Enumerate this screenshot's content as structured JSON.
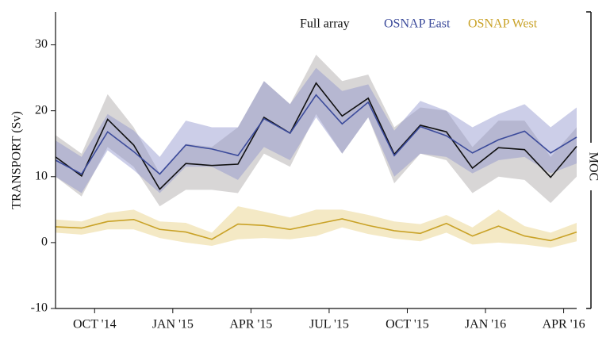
{
  "chart_data": {
    "type": "line",
    "ylabel": "TRANSPORT (Sv)",
    "right_label": "MOC",
    "x": [
      "2014-08",
      "2014-09",
      "2014-10",
      "2014-11",
      "2014-12",
      "2015-01",
      "2015-02",
      "2015-03",
      "2015-04",
      "2015-05",
      "2015-06",
      "2015-07",
      "2015-08",
      "2015-09",
      "2015-10",
      "2015-11",
      "2015-12",
      "2016-01",
      "2016-02",
      "2016-03",
      "2016-04"
    ],
    "xlim": [
      "2014-08",
      "2016-04"
    ],
    "xticks": [
      {
        "value": "2014-10",
        "label": "OCT '14"
      },
      {
        "value": "2015-01",
        "label": "JAN '15"
      },
      {
        "value": "2015-04",
        "label": "APR '15"
      },
      {
        "value": "2015-07",
        "label": "JUL '15"
      },
      {
        "value": "2015-10",
        "label": "OCT '15"
      },
      {
        "value": "2016-01",
        "label": "JAN '16"
      },
      {
        "value": "2016-04",
        "label": "APR '16"
      }
    ],
    "ylim": [
      -10,
      35
    ],
    "yticks": [
      -10,
      0,
      10,
      20,
      30
    ],
    "series": [
      {
        "name": "Full array",
        "color": "#111111",
        "band_color": "#a9a5a5",
        "values": [
          13.0,
          10.1,
          18.7,
          14.8,
          8.1,
          12.0,
          11.7,
          11.9,
          19.0,
          16.6,
          24.2,
          19.2,
          21.9,
          13.4,
          17.8,
          16.8,
          11.3,
          14.4,
          14.1,
          9.9,
          14.6
        ],
        "band_upper": [
          16.3,
          13.5,
          22.5,
          17.5,
          10.5,
          15.0,
          14.5,
          17.5,
          24.5,
          21.0,
          28.5,
          24.5,
          25.5,
          17.5,
          20.5,
          20.0,
          14.5,
          18.5,
          18.5,
          13.0,
          17.5
        ],
        "band_lower": [
          10.0,
          7.0,
          14.5,
          11.5,
          5.5,
          8.0,
          8.0,
          7.5,
          13.5,
          11.5,
          19.5,
          13.5,
          19.0,
          9.0,
          13.5,
          12.5,
          7.5,
          10.0,
          9.5,
          6.0,
          10.0
        ]
      },
      {
        "name": "OSNAP East",
        "color": "#3c4b9b",
        "band_color": "#8e92cc",
        "values": [
          12.5,
          10.4,
          16.8,
          13.8,
          10.4,
          14.8,
          14.2,
          13.2,
          18.8,
          16.6,
          22.4,
          18.0,
          21.3,
          13.2,
          17.6,
          16.2,
          13.6,
          15.6,
          16.9,
          13.6,
          16.0
        ],
        "band_upper": [
          15.5,
          13.0,
          19.5,
          17.0,
          13.0,
          18.5,
          17.5,
          17.5,
          24.5,
          21.0,
          26.5,
          23.0,
          24.0,
          17.0,
          21.5,
          20.0,
          17.5,
          19.5,
          21.0,
          17.5,
          20.5
        ],
        "band_lower": [
          10.0,
          7.5,
          14.0,
          11.0,
          7.5,
          11.5,
          11.5,
          9.5,
          14.5,
          12.5,
          19.0,
          13.5,
          19.0,
          10.0,
          13.5,
          13.0,
          10.5,
          12.5,
          13.0,
          10.5,
          12.0
        ]
      },
      {
        "name": "OSNAP West",
        "color": "#c9a227",
        "band_color": "#e6cf7e",
        "values": [
          2.4,
          2.2,
          3.2,
          3.5,
          2.0,
          1.6,
          0.5,
          2.8,
          2.6,
          2.0,
          2.8,
          3.6,
          2.6,
          1.8,
          1.4,
          2.9,
          1.0,
          2.5,
          1.0,
          0.3,
          1.6
        ],
        "band_upper": [
          3.5,
          3.2,
          4.5,
          5.0,
          3.2,
          3.0,
          1.5,
          5.5,
          4.7,
          3.8,
          5.0,
          5.0,
          4.2,
          3.2,
          2.8,
          4.2,
          2.3,
          5.0,
          2.5,
          1.5,
          3.0
        ],
        "band_lower": [
          1.5,
          1.2,
          2.0,
          2.0,
          0.7,
          0.0,
          -0.5,
          0.5,
          0.7,
          0.5,
          1.0,
          2.3,
          1.3,
          0.6,
          0.2,
          1.5,
          -0.3,
          0.0,
          -0.3,
          -0.8,
          0.2
        ]
      }
    ]
  }
}
